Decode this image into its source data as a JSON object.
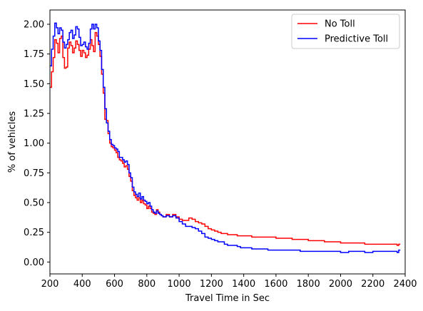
{
  "chart_data": {
    "type": "line",
    "title": "",
    "xlabel": "Travel Time in Sec",
    "ylabel": "% of vehicles",
    "xlim": [
      200,
      2400
    ],
    "ylim": [
      -0.1,
      2.12
    ],
    "xticks": [
      200,
      400,
      600,
      800,
      1000,
      1200,
      1400,
      1600,
      1800,
      2000,
      2200,
      2400
    ],
    "yticks": [
      0.0,
      0.25,
      0.5,
      0.75,
      1.0,
      1.25,
      1.5,
      1.75,
      2.0
    ],
    "ytick_labels": [
      "0.00",
      "0.25",
      "0.50",
      "0.75",
      "1.00",
      "1.25",
      "1.50",
      "1.75",
      "2.00"
    ],
    "grid": false,
    "legend_position": "top-right",
    "step": "post",
    "series": [
      {
        "name": "No Toll",
        "color": "#ff0000",
        "x": [
          200,
          210,
          220,
          230,
          240,
          250,
          260,
          270,
          280,
          290,
          300,
          310,
          320,
          330,
          340,
          350,
          360,
          370,
          380,
          390,
          400,
          410,
          420,
          430,
          440,
          450,
          460,
          470,
          480,
          490,
          500,
          510,
          520,
          530,
          540,
          550,
          560,
          570,
          580,
          590,
          600,
          610,
          620,
          630,
          640,
          650,
          660,
          670,
          680,
          690,
          700,
          710,
          720,
          730,
          740,
          750,
          760,
          770,
          780,
          790,
          800,
          810,
          820,
          830,
          840,
          850,
          860,
          870,
          880,
          890,
          900,
          920,
          940,
          960,
          980,
          1000,
          1020,
          1040,
          1060,
          1080,
          1100,
          1120,
          1140,
          1160,
          1180,
          1200,
          1220,
          1240,
          1260,
          1280,
          1300,
          1320,
          1340,
          1360,
          1380,
          1400,
          1450,
          1500,
          1550,
          1600,
          1650,
          1700,
          1750,
          1800,
          1850,
          1900,
          1950,
          2000,
          2050,
          2100,
          2150,
          2200,
          2250,
          2300,
          2350,
          2360
        ],
        "y": [
          1.47,
          1.6,
          1.72,
          1.87,
          1.84,
          1.76,
          1.88,
          1.9,
          1.72,
          1.63,
          1.64,
          1.8,
          1.85,
          1.82,
          1.76,
          1.8,
          1.86,
          1.83,
          1.78,
          1.73,
          1.78,
          1.76,
          1.72,
          1.74,
          1.79,
          1.87,
          1.82,
          1.77,
          1.93,
          1.9,
          1.83,
          1.73,
          1.58,
          1.42,
          1.2,
          1.19,
          1.08,
          1.0,
          0.97,
          0.96,
          0.94,
          0.92,
          0.88,
          0.86,
          0.85,
          0.83,
          0.8,
          0.81,
          0.78,
          0.72,
          0.68,
          0.6,
          0.56,
          0.54,
          0.52,
          0.54,
          0.5,
          0.52,
          0.49,
          0.48,
          0.45,
          0.47,
          0.45,
          0.42,
          0.41,
          0.4,
          0.44,
          0.42,
          0.4,
          0.39,
          0.38,
          0.4,
          0.38,
          0.4,
          0.38,
          0.36,
          0.35,
          0.35,
          0.37,
          0.36,
          0.34,
          0.33,
          0.32,
          0.3,
          0.28,
          0.27,
          0.26,
          0.25,
          0.24,
          0.24,
          0.23,
          0.23,
          0.23,
          0.22,
          0.22,
          0.22,
          0.21,
          0.21,
          0.21,
          0.2,
          0.2,
          0.19,
          0.19,
          0.18,
          0.18,
          0.17,
          0.17,
          0.16,
          0.16,
          0.16,
          0.15,
          0.15,
          0.15,
          0.15,
          0.14,
          0.15
        ]
      },
      {
        "name": "Predictive Toll",
        "color": "#0000ff",
        "x": [
          200,
          210,
          220,
          230,
          240,
          250,
          260,
          270,
          280,
          290,
          300,
          310,
          320,
          330,
          340,
          350,
          360,
          370,
          380,
          390,
          400,
          410,
          420,
          430,
          440,
          450,
          460,
          470,
          480,
          490,
          500,
          510,
          520,
          530,
          540,
          550,
          560,
          570,
          580,
          590,
          600,
          610,
          620,
          630,
          640,
          650,
          660,
          670,
          680,
          690,
          700,
          710,
          720,
          730,
          740,
          750,
          760,
          770,
          780,
          790,
          800,
          810,
          820,
          830,
          840,
          850,
          860,
          870,
          880,
          890,
          900,
          920,
          940,
          960,
          980,
          1000,
          1020,
          1040,
          1060,
          1080,
          1100,
          1120,
          1140,
          1160,
          1180,
          1200,
          1220,
          1240,
          1260,
          1280,
          1300,
          1320,
          1340,
          1360,
          1380,
          1400,
          1450,
          1500,
          1550,
          1600,
          1650,
          1700,
          1750,
          1800,
          1850,
          1900,
          1950,
          2000,
          2050,
          2100,
          2150,
          2200,
          2250,
          2300,
          2350,
          2360
        ],
        "y": [
          1.65,
          1.79,
          1.9,
          2.01,
          1.97,
          1.92,
          1.97,
          1.95,
          1.85,
          1.8,
          1.83,
          1.87,
          1.93,
          1.95,
          1.88,
          1.91,
          1.98,
          1.96,
          1.89,
          1.82,
          1.83,
          1.85,
          1.81,
          1.79,
          1.84,
          1.96,
          2.0,
          1.96,
          2.0,
          1.97,
          1.86,
          1.78,
          1.62,
          1.47,
          1.29,
          1.17,
          1.1,
          1.03,
          0.99,
          0.98,
          0.96,
          0.95,
          0.93,
          0.88,
          0.88,
          0.86,
          0.84,
          0.85,
          0.82,
          0.75,
          0.71,
          0.63,
          0.59,
          0.57,
          0.55,
          0.58,
          0.53,
          0.55,
          0.52,
          0.51,
          0.49,
          0.5,
          0.47,
          0.44,
          0.42,
          0.41,
          0.43,
          0.41,
          0.4,
          0.39,
          0.38,
          0.39,
          0.38,
          0.39,
          0.37,
          0.34,
          0.32,
          0.3,
          0.3,
          0.29,
          0.28,
          0.26,
          0.24,
          0.21,
          0.2,
          0.19,
          0.18,
          0.17,
          0.17,
          0.15,
          0.14,
          0.14,
          0.14,
          0.13,
          0.12,
          0.12,
          0.11,
          0.11,
          0.1,
          0.1,
          0.1,
          0.1,
          0.09,
          0.09,
          0.09,
          0.09,
          0.09,
          0.08,
          0.09,
          0.09,
          0.08,
          0.09,
          0.09,
          0.09,
          0.08,
          0.1
        ]
      }
    ]
  }
}
